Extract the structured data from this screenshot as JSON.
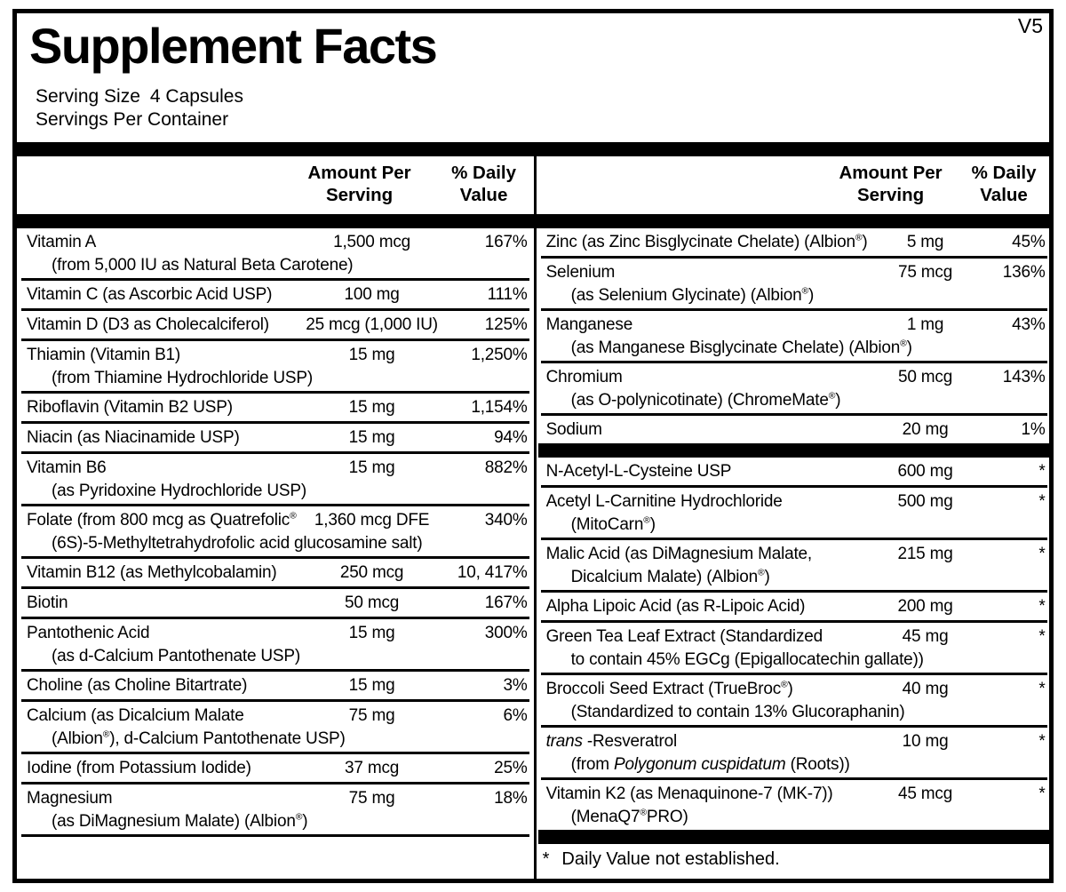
{
  "version": "V5",
  "title": "Supplement Facts",
  "serving": {
    "size_label": "Serving Size",
    "size_value": "4 Capsules",
    "per_container": "Servings Per Container"
  },
  "column_headers": {
    "amount_line1": "Amount Per",
    "amount_line2": "Serving",
    "dv_line1": "% Daily",
    "dv_line2": "Value"
  },
  "left_rows": [
    {
      "name": "Vitamin A",
      "sub": "(from 5,000 IU as Natural Beta Carotene)",
      "amount": "1,500 mcg",
      "dv": "167%"
    },
    {
      "name": "Vitamin C (as Ascorbic Acid USP)",
      "amount": "100 mg",
      "dv": "111%"
    },
    {
      "name": "Vitamin D (D3 as Cholecalciferol)",
      "amount": "25 mcg (1,000 IU)",
      "dv": "125%"
    },
    {
      "name": "Thiamin (Vitamin B1)",
      "sub": "(from Thiamine Hydrochloride USP)",
      "amount": "15 mg",
      "dv": "1,250%"
    },
    {
      "name": "Riboflavin (Vitamin B2 USP)",
      "amount": "15 mg",
      "dv": "1,154%"
    },
    {
      "name": "Niacin (as Niacinamide USP)",
      "amount": "15 mg",
      "dv": "94%"
    },
    {
      "name": "Vitamin B6",
      "sub": "(as Pyridoxine Hydrochloride USP)",
      "amount": "15 mg",
      "dv": "882%"
    },
    {
      "name": "Folate (from 800 mcg as Quatrefolic®",
      "sub": "(6S)-5-Methyltetrahydrofolic acid glucosamine salt)",
      "amount": "1,360 mcg DFE",
      "dv": "340%"
    },
    {
      "name": "Vitamin B12 (as Methylcobalamin)",
      "amount": "250 mcg",
      "dv": "10, 417%"
    },
    {
      "name": "Biotin",
      "amount": "50 mcg",
      "dv": "167%"
    },
    {
      "name": "Pantothenic Acid",
      "sub": "(as d-Calcium Pantothenate USP)",
      "amount": "15 mg",
      "dv": "300%"
    },
    {
      "name": "Choline (as Choline Bitartrate)",
      "amount": "15 mg",
      "dv": "3%"
    },
    {
      "name": "Calcium (as Dicalcium Malate",
      "sub": "(Albion®), d-Calcium Pantothenate USP)",
      "amount": "75 mg",
      "dv": "6%"
    },
    {
      "name": "Iodine (from Potassium Iodide)",
      "amount": "37 mcg",
      "dv": "25%"
    },
    {
      "name": "Magnesium",
      "sub": "(as DiMagnesium Malate) (Albion®)",
      "amount": "75 mg",
      "dv": "18%"
    }
  ],
  "right_minerals": [
    {
      "name": "Zinc (as Zinc Bisglycinate Chelate) (Albion®)",
      "amount": "5 mg",
      "dv": "45%"
    },
    {
      "name": "Selenium",
      "sub": "(as Selenium Glycinate) (Albion®)",
      "amount": "75 mcg",
      "dv": "136%"
    },
    {
      "name": "Manganese",
      "sub": "(as Manganese Bisglycinate Chelate) (Albion®)",
      "amount": "1 mg",
      "dv": "43%"
    },
    {
      "name": "Chromium",
      "sub": "(as O-polynicotinate) (ChromeMate®)",
      "amount": "50 mcg",
      "dv": "143%"
    },
    {
      "name": "Sodium",
      "amount": "20 mg",
      "dv": "1%"
    }
  ],
  "right_other": [
    {
      "name": "N-Acetyl-L-Cysteine USP",
      "amount": "600 mg",
      "dv": "*"
    },
    {
      "name": "Acetyl L-Carnitine Hydrochloride",
      "sub": "(MitoCarn®)",
      "amount": "500 mg",
      "dv": "*"
    },
    {
      "name": "Malic Acid (as DiMagnesium Malate,",
      "sub": "Dicalcium Malate) (Albion®)",
      "amount": "215 mg",
      "dv": "*"
    },
    {
      "name": "Alpha Lipoic Acid (as R-Lipoic Acid)",
      "amount": "200 mg",
      "dv": "*"
    },
    {
      "name": "Green Tea Leaf Extract (Standardized",
      "sub": "to contain 45% EGCg (Epigallocatechin gallate))",
      "amount": "45 mg",
      "dv": "*"
    },
    {
      "name": "Broccoli Seed Extract (TrueBroc®)",
      "sub": "(Standardized to contain 13% Glucoraphanin)",
      "amount": "40 mg",
      "dv": "*"
    },
    {
      "name_italic": "trans",
      "name_rest": " -Resveratrol",
      "sub_pre": "(from ",
      "sub_italic": "Polygonum cuspidatum",
      "sub_post": " (Roots))",
      "amount": "10 mg",
      "dv": "*"
    },
    {
      "name": "Vitamin K2 (as Menaquinone-7 (MK-7))",
      "sub": "(MenaQ7®PRO)",
      "amount": "45 mcg",
      "dv": "*"
    }
  ],
  "footnote": {
    "symbol": "*",
    "text": "Daily Value not established."
  }
}
